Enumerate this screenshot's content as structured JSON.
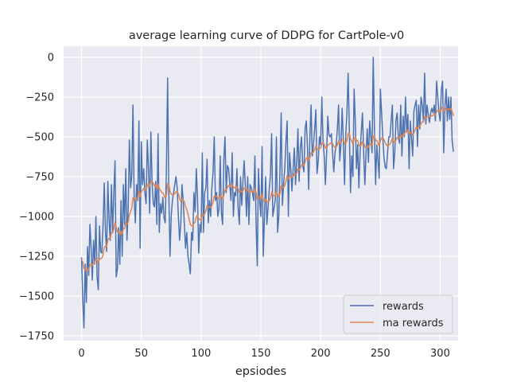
{
  "chart_data": {
    "type": "line",
    "title": "average learning curve of DDPG for CartPole-v0",
    "xlabel": "epsiodes",
    "ylabel": "",
    "xlim": [
      -15,
      315
    ],
    "ylim": [
      -1780,
      70
    ],
    "xticks": [
      0,
      50,
      100,
      150,
      200,
      250,
      300
    ],
    "yticks": [
      0,
      -250,
      -500,
      -750,
      -1000,
      -1250,
      -1500,
      -1750
    ],
    "grid": true,
    "legend_position": "lower right",
    "series": [
      {
        "name": "rewards",
        "color": "#4c72b0",
        "values": [
          -1260,
          -1520,
          -1700,
          -1300,
          -1540,
          -1190,
          -1370,
          -1050,
          -1200,
          -1400,
          -1150,
          -1300,
          -1000,
          -1380,
          -1460,
          -1060,
          -1220,
          -1230,
          -1050,
          -790,
          -1100,
          -1220,
          -780,
          -1020,
          -1150,
          -800,
          -1100,
          -850,
          -650,
          -1380,
          -1330,
          -1070,
          -1300,
          -900,
          -1250,
          -800,
          -1050,
          -700,
          -1150,
          -950,
          -520,
          -820,
          -750,
          -300,
          -880,
          -1040,
          -800,
          -900,
          -400,
          -1200,
          -530,
          -800,
          -700,
          -850,
          -920,
          -520,
          -700,
          -980,
          -470,
          -780,
          -920,
          -940,
          -780,
          -1050,
          -480,
          -1100,
          -920,
          -980,
          -880,
          -1010,
          -1040,
          -700,
          -130,
          -850,
          -1250,
          -1000,
          -900,
          -850,
          -800,
          -750,
          -820,
          -1000,
          -1150,
          -1050,
          -800,
          -900,
          -1050,
          -1200,
          -1100,
          -1250,
          -1300,
          -1360,
          -1100,
          -1150,
          -850,
          -970,
          -700,
          -880,
          -1230,
          -1050,
          -1100,
          -600,
          -1100,
          -850,
          -820,
          -640,
          -1040,
          -900,
          -1000,
          -820,
          -720,
          -500,
          -900,
          -850,
          -1000,
          -950,
          -620,
          -980,
          -1050,
          -650,
          -500,
          -850,
          -680,
          -700,
          -800,
          -900,
          -600,
          -1000,
          -850,
          -870,
          -700,
          -950,
          -1050,
          -750,
          -930,
          -780,
          -650,
          -800,
          -1000,
          -750,
          -1050,
          -800,
          -820,
          -850,
          -900,
          -620,
          -1040,
          -1310,
          -700,
          -900,
          -1000,
          -560,
          -1250,
          -1000,
          -750,
          -1050,
          -950,
          -830,
          -740,
          -480,
          -1000,
          -950,
          -900,
          -500,
          -1100,
          -1000,
          -700,
          -350,
          -930,
          -800,
          -700,
          -530,
          -400,
          -1000,
          -600,
          -700,
          -840,
          -700,
          -570,
          -800,
          -660,
          -450,
          -780,
          -570,
          -500,
          -680,
          -720,
          -450,
          -400,
          -570,
          -830,
          -500,
          -300,
          -620,
          -550,
          -450,
          -330,
          -730,
          -650,
          -500,
          -550,
          -250,
          -520,
          -620,
          -800,
          -600,
          -370,
          -490,
          -500,
          -480,
          -600,
          -720,
          -600,
          -550,
          -450,
          -300,
          -650,
          -550,
          -320,
          -520,
          -800,
          -490,
          -350,
          -100,
          -450,
          -850,
          -620,
          -750,
          -200,
          -400,
          -700,
          -550,
          -820,
          -600,
          -470,
          -350,
          -600,
          -800,
          -600,
          -450,
          -660,
          -400,
          -500,
          -600,
          0,
          -450,
          -800,
          -550,
          -650,
          -760,
          -200,
          -350,
          -500,
          -630,
          -690,
          -700,
          -600,
          -500,
          -500,
          -400,
          -300,
          -700,
          -600,
          -400,
          -350,
          -500,
          -540,
          -300,
          -620,
          -370,
          -500,
          -250,
          -470,
          -360,
          -700,
          -400,
          -500,
          -620,
          -340,
          -300,
          -270,
          -560,
          -300,
          -450,
          -250,
          -300,
          -400,
          -100,
          -420,
          -300,
          -360,
          -410,
          -350,
          -320,
          -350,
          -300,
          -400,
          -150,
          -250,
          -350,
          -400,
          -200,
          -150,
          -600,
          -310,
          -200,
          -400,
          -250,
          -390,
          -250,
          -520,
          -590
        ]
      },
      {
        "name": "ma rewards",
        "color": "#dd8452",
        "values": [
          -1270,
          -1287,
          -1328,
          -1325,
          -1347,
          -1331,
          -1335,
          -1307,
          -1297,
          -1307,
          -1291,
          -1292,
          -1263,
          -1275,
          -1293,
          -1270,
          -1265,
          -1262,
          -1241,
          -1196,
          -1186,
          -1190,
          -1149,
          -1136,
          -1137,
          -1103,
          -1103,
          -1077,
          -1035,
          -1069,
          -1095,
          -1093,
          -1114,
          -1093,
          -1109,
          -1078,
          -1075,
          -1037,
          -1049,
          -1039,
          -987,
          -970,
          -948,
          -883,
          -883,
          -899,
          -889,
          -890,
          -841,
          -877,
          -842,
          -838,
          -824,
          -827,
          -836,
          -805,
          -794,
          -813,
          -779,
          -779,
          -793,
          -808,
          -805,
          -829,
          -794,
          -824,
          -834,
          -849,
          -852,
          -868,
          -885,
          -866,
          -793,
          -799,
          -844,
          -860,
          -864,
          -862,
          -856,
          -845,
          -843,
          -858,
          -888,
          -904,
          -893,
          -894,
          -910,
          -939,
          -955,
          -985,
          -1016,
          -1051,
          -1056,
          -1065,
          -1043,
          -1036,
          -1002,
          -990,
          -1014,
          -1018,
          -1026,
          -984,
          -995,
          -981,
          -965,
          -933,
          -943,
          -939,
          -945,
          -932,
          -911,
          -870,
          -873,
          -871,
          -884,
          -890,
          -863,
          -875,
          -892,
          -868,
          -831,
          -833,
          -818,
          -806,
          -806,
          -815,
          -794,
          -815,
          -818,
          -823,
          -811,
          -825,
          -848,
          -838,
          -847,
          -840,
          -821,
          -819,
          -837,
          -828,
          -850,
          -845,
          -843,
          -843,
          -849,
          -826,
          -847,
          -893,
          -874,
          -877,
          -889,
          -856,
          -896,
          -906,
          -891,
          -907,
          -911,
          -903,
          -886,
          -846,
          -861,
          -870,
          -873,
          -836,
          -862,
          -876,
          -858,
          -808,
          -820,
          -818,
          -806,
          -779,
          -741,
          -767,
          -750,
          -745,
          -755,
          -749,
          -731,
          -738,
          -730,
          -702,
          -710,
          -696,
          -676,
          -677,
          -682,
          -658,
          -633,
          -627,
          -647,
          -632,
          -599,
          -601,
          -596,
          -581,
          -556,
          -573,
          -581,
          -573,
          -571,
          -539,
          -537,
          -545,
          -570,
          -573,
          -553,
          -547,
          -542,
          -536,
          -542,
          -560,
          -564,
          -563,
          -551,
          -526,
          -538,
          -539,
          -517,
          -517,
          -546,
          -540,
          -521,
          -479,
          -476,
          -514,
          -524,
          -547,
          -512,
          -501,
          -521,
          -524,
          -554,
          -558,
          -550,
          -530,
          -537,
          -563,
          -567,
          -555,
          -566,
          -549,
          -544,
          -550,
          -495,
          -490,
          -521,
          -524,
          -537,
          -559,
          -523,
          -506,
          -505,
          -518,
          -535,
          -552,
          -556,
          -551,
          -546,
          -531,
          -508,
          -527,
          -535,
          -521,
          -504,
          -504,
          -508,
          -487,
          -500,
          -487,
          -488,
          -464,
          -465,
          -455,
          -479,
          -471,
          -474,
          -489,
          -474,
          -457,
          -438,
          -450,
          -435,
          -436,
          -418,
          -406,
          -406,
          -375,
          -380,
          -372,
          -371,
          -375,
          -372,
          -367,
          -365,
          -358,
          -362,
          -341,
          -332,
          -334,
          -341,
          -327,
          -309,
          -338,
          -336,
          -322,
          -330,
          -322,
          -329,
          -321,
          -341,
          -366
        ]
      }
    ]
  }
}
